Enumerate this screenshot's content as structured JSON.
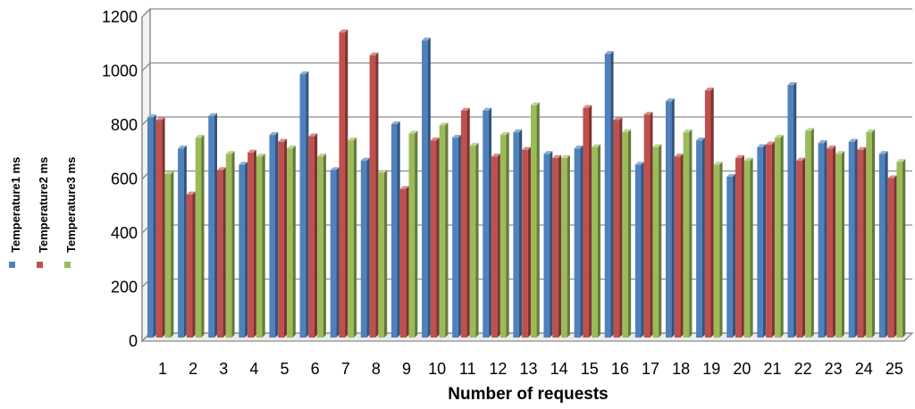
{
  "chart_data": {
    "type": "bar",
    "style": "3d-clustered-column",
    "title": "",
    "xlabel": "Number of requests",
    "ylabel": "",
    "ylim": [
      0,
      1200
    ],
    "yticks": [
      0,
      200,
      400,
      600,
      800,
      1000,
      1200
    ],
    "grid": true,
    "legend_position": "left",
    "categories": [
      "1",
      "2",
      "3",
      "4",
      "5",
      "6",
      "7",
      "8",
      "9",
      "10",
      "11",
      "12",
      "13",
      "14",
      "15",
      "16",
      "17",
      "18",
      "19",
      "20",
      "21",
      "22",
      "23",
      "24",
      "25"
    ],
    "series": [
      {
        "name": "Temperature1 ms",
        "color": "#4f81bd",
        "values": [
          815,
          700,
          820,
          640,
          750,
          975,
          620,
          655,
          790,
          1100,
          740,
          840,
          760,
          680,
          700,
          1050,
          640,
          875,
          730,
          595,
          705,
          935,
          720,
          725,
          680
        ]
      },
      {
        "name": "Temperature2 ms",
        "color": "#c0504d",
        "values": [
          805,
          530,
          620,
          685,
          725,
          745,
          1130,
          1045,
          550,
          730,
          840,
          670,
          695,
          665,
          850,
          805,
          825,
          670,
          915,
          665,
          715,
          655,
          700,
          695,
          590
        ]
      },
      {
        "name": "Temperature3 ms",
        "color": "#9bbb59",
        "values": [
          605,
          740,
          680,
          670,
          700,
          670,
          730,
          610,
          755,
          785,
          710,
          750,
          860,
          665,
          705,
          760,
          705,
          760,
          640,
          655,
          740,
          765,
          680,
          760,
          650
        ]
      }
    ]
  }
}
